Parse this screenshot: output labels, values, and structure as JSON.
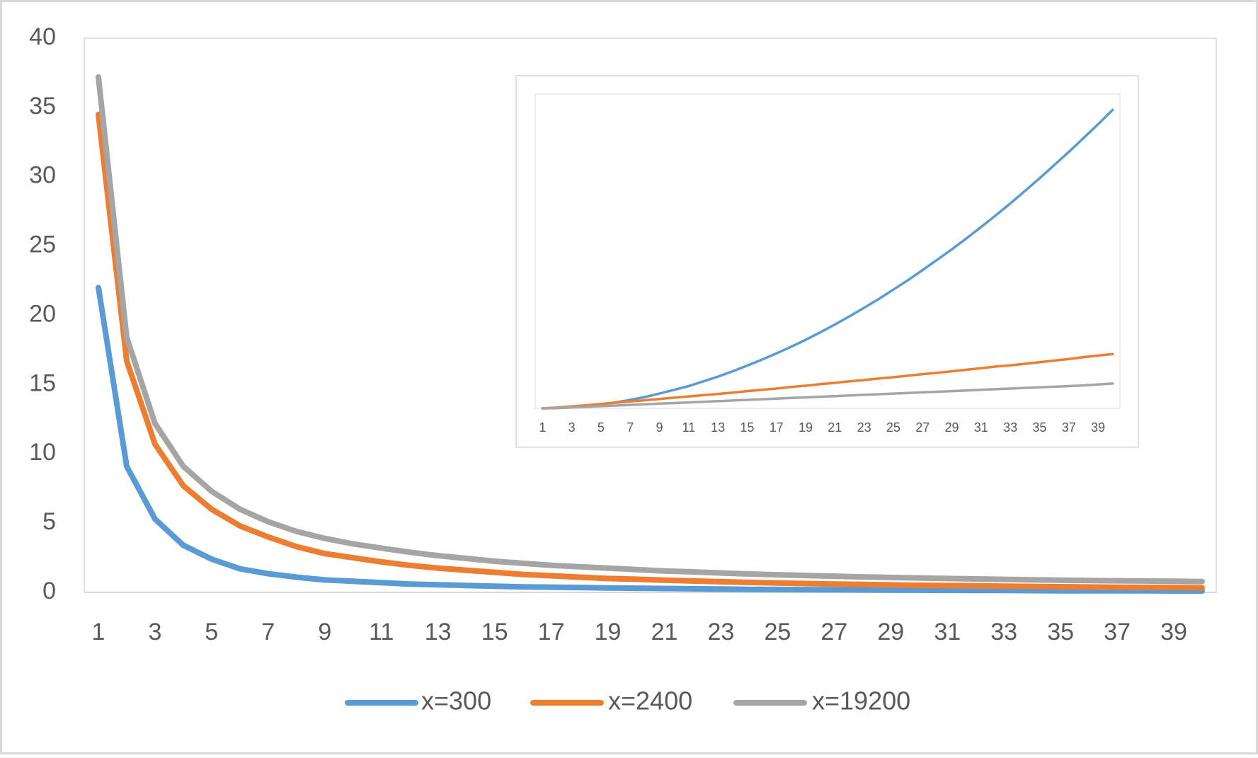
{
  "chart_data": [
    {
      "type": "line",
      "categories": [
        1,
        null,
        3,
        null,
        5,
        null,
        7,
        null,
        9,
        null,
        11,
        null,
        13,
        null,
        15,
        null,
        17,
        null,
        19,
        null,
        21,
        null,
        23,
        null,
        25,
        null,
        27,
        null,
        29,
        null,
        31,
        null,
        33,
        null,
        35,
        null,
        37,
        null,
        39,
        null
      ],
      "ylim": [
        0,
        40
      ],
      "yticks": [
        0,
        5,
        10,
        15,
        20,
        25,
        30,
        35,
        40
      ],
      "legend": "bottom",
      "series": [
        {
          "name": "x=300",
          "color": "#5b9bd5",
          "values": [
            22,
            9.1,
            5.3,
            3.4,
            2.4,
            1.7,
            1.35,
            1.1,
            0.9,
            0.8,
            0.7,
            0.6,
            0.55,
            0.5,
            0.45,
            0.4,
            0.38,
            0.35,
            0.32,
            0.3,
            0.28,
            0.26,
            0.24,
            0.22,
            0.21,
            0.2,
            0.19,
            0.18,
            0.17,
            0.16,
            0.15,
            0.14,
            0.14,
            0.13,
            0.12,
            0.12,
            0.11,
            0.11,
            0.1,
            0.1
          ]
        },
        {
          "name": "x=2400",
          "color": "#ed7d31",
          "values": [
            34.5,
            16.7,
            10.7,
            7.7,
            6,
            4.8,
            4,
            3.3,
            2.8,
            2.5,
            2.2,
            1.95,
            1.75,
            1.6,
            1.45,
            1.3,
            1.2,
            1.1,
            1.0,
            0.95,
            0.88,
            0.82,
            0.77,
            0.72,
            0.68,
            0.64,
            0.6,
            0.57,
            0.54,
            0.51,
            0.49,
            0.47,
            0.45,
            0.43,
            0.41,
            0.39,
            0.37,
            0.36,
            0.35,
            0.33
          ]
        },
        {
          "name": "x=19200",
          "color": "#a5a5a5",
          "values": [
            37.2,
            18.4,
            12.2,
            9.1,
            7.3,
            6,
            5.1,
            4.4,
            3.9,
            3.5,
            3.2,
            2.9,
            2.65,
            2.45,
            2.25,
            2.1,
            1.95,
            1.85,
            1.75,
            1.65,
            1.55,
            1.48,
            1.4,
            1.33,
            1.27,
            1.22,
            1.17,
            1.12,
            1.08,
            1.04,
            1.0,
            0.97,
            0.94,
            0.91,
            0.88,
            0.86,
            0.84,
            0.82,
            0.8,
            0.78
          ]
        }
      ]
    },
    {
      "type": "line",
      "categories": [
        1,
        null,
        3,
        null,
        5,
        null,
        7,
        null,
        9,
        null,
        11,
        null,
        13,
        null,
        15,
        null,
        17,
        null,
        19,
        null,
        21,
        null,
        23,
        null,
        25,
        null,
        27,
        null,
        29,
        null,
        31,
        null,
        33,
        null,
        35,
        null,
        37,
        null,
        39,
        null
      ],
      "ylim": [
        0,
        100
      ],
      "series": [
        {
          "color": "#5b9bd5",
          "values": [
            0,
            0.1,
            0.3,
            0.7,
            1.3,
            1.9,
            2.7,
            3.6,
            4.7,
            5.9,
            7.1,
            8.6,
            10.1,
            11.8,
            13.6,
            15.5,
            17.5,
            19.6,
            21.8,
            24.2,
            26.7,
            29.3,
            32,
            34.8,
            37.8,
            40.8,
            44,
            47.3,
            50.6,
            54.1,
            57.7,
            61.4,
            65.2,
            69.2,
            73.2,
            77.4,
            81.6,
            86,
            90.4,
            95
          ]
        },
        {
          "color": "#ed7d31",
          "values": [
            0,
            0.3,
            0.6,
            1.0,
            1.4,
            1.8,
            2.2,
            2.6,
            3.0,
            3.4,
            3.8,
            4.2,
            4.6,
            5.0,
            5.5,
            5.9,
            6.3,
            6.8,
            7.2,
            7.7,
            8.1,
            8.6,
            9.0,
            9.5,
            9.9,
            10.4,
            10.9,
            11.3,
            11.8,
            12.3,
            12.8,
            13.3,
            13.7,
            14.2,
            14.7,
            15.2,
            15.7,
            16.3,
            16.8,
            17.3
          ]
        },
        {
          "color": "#a5a5a5",
          "values": [
            0,
            0.15,
            0.3,
            0.5,
            0.7,
            0.9,
            1.1,
            1.3,
            1.5,
            1.7,
            1.9,
            2.1,
            2.3,
            2.5,
            2.7,
            2.9,
            3.1,
            3.3,
            3.5,
            3.7,
            3.9,
            4.1,
            4.3,
            4.5,
            4.7,
            4.9,
            5.1,
            5.3,
            5.5,
            5.7,
            5.9,
            6.1,
            6.3,
            6.5,
            6.7,
            6.9,
            7.1,
            7.3,
            7.6,
            7.9
          ]
        }
      ]
    }
  ]
}
